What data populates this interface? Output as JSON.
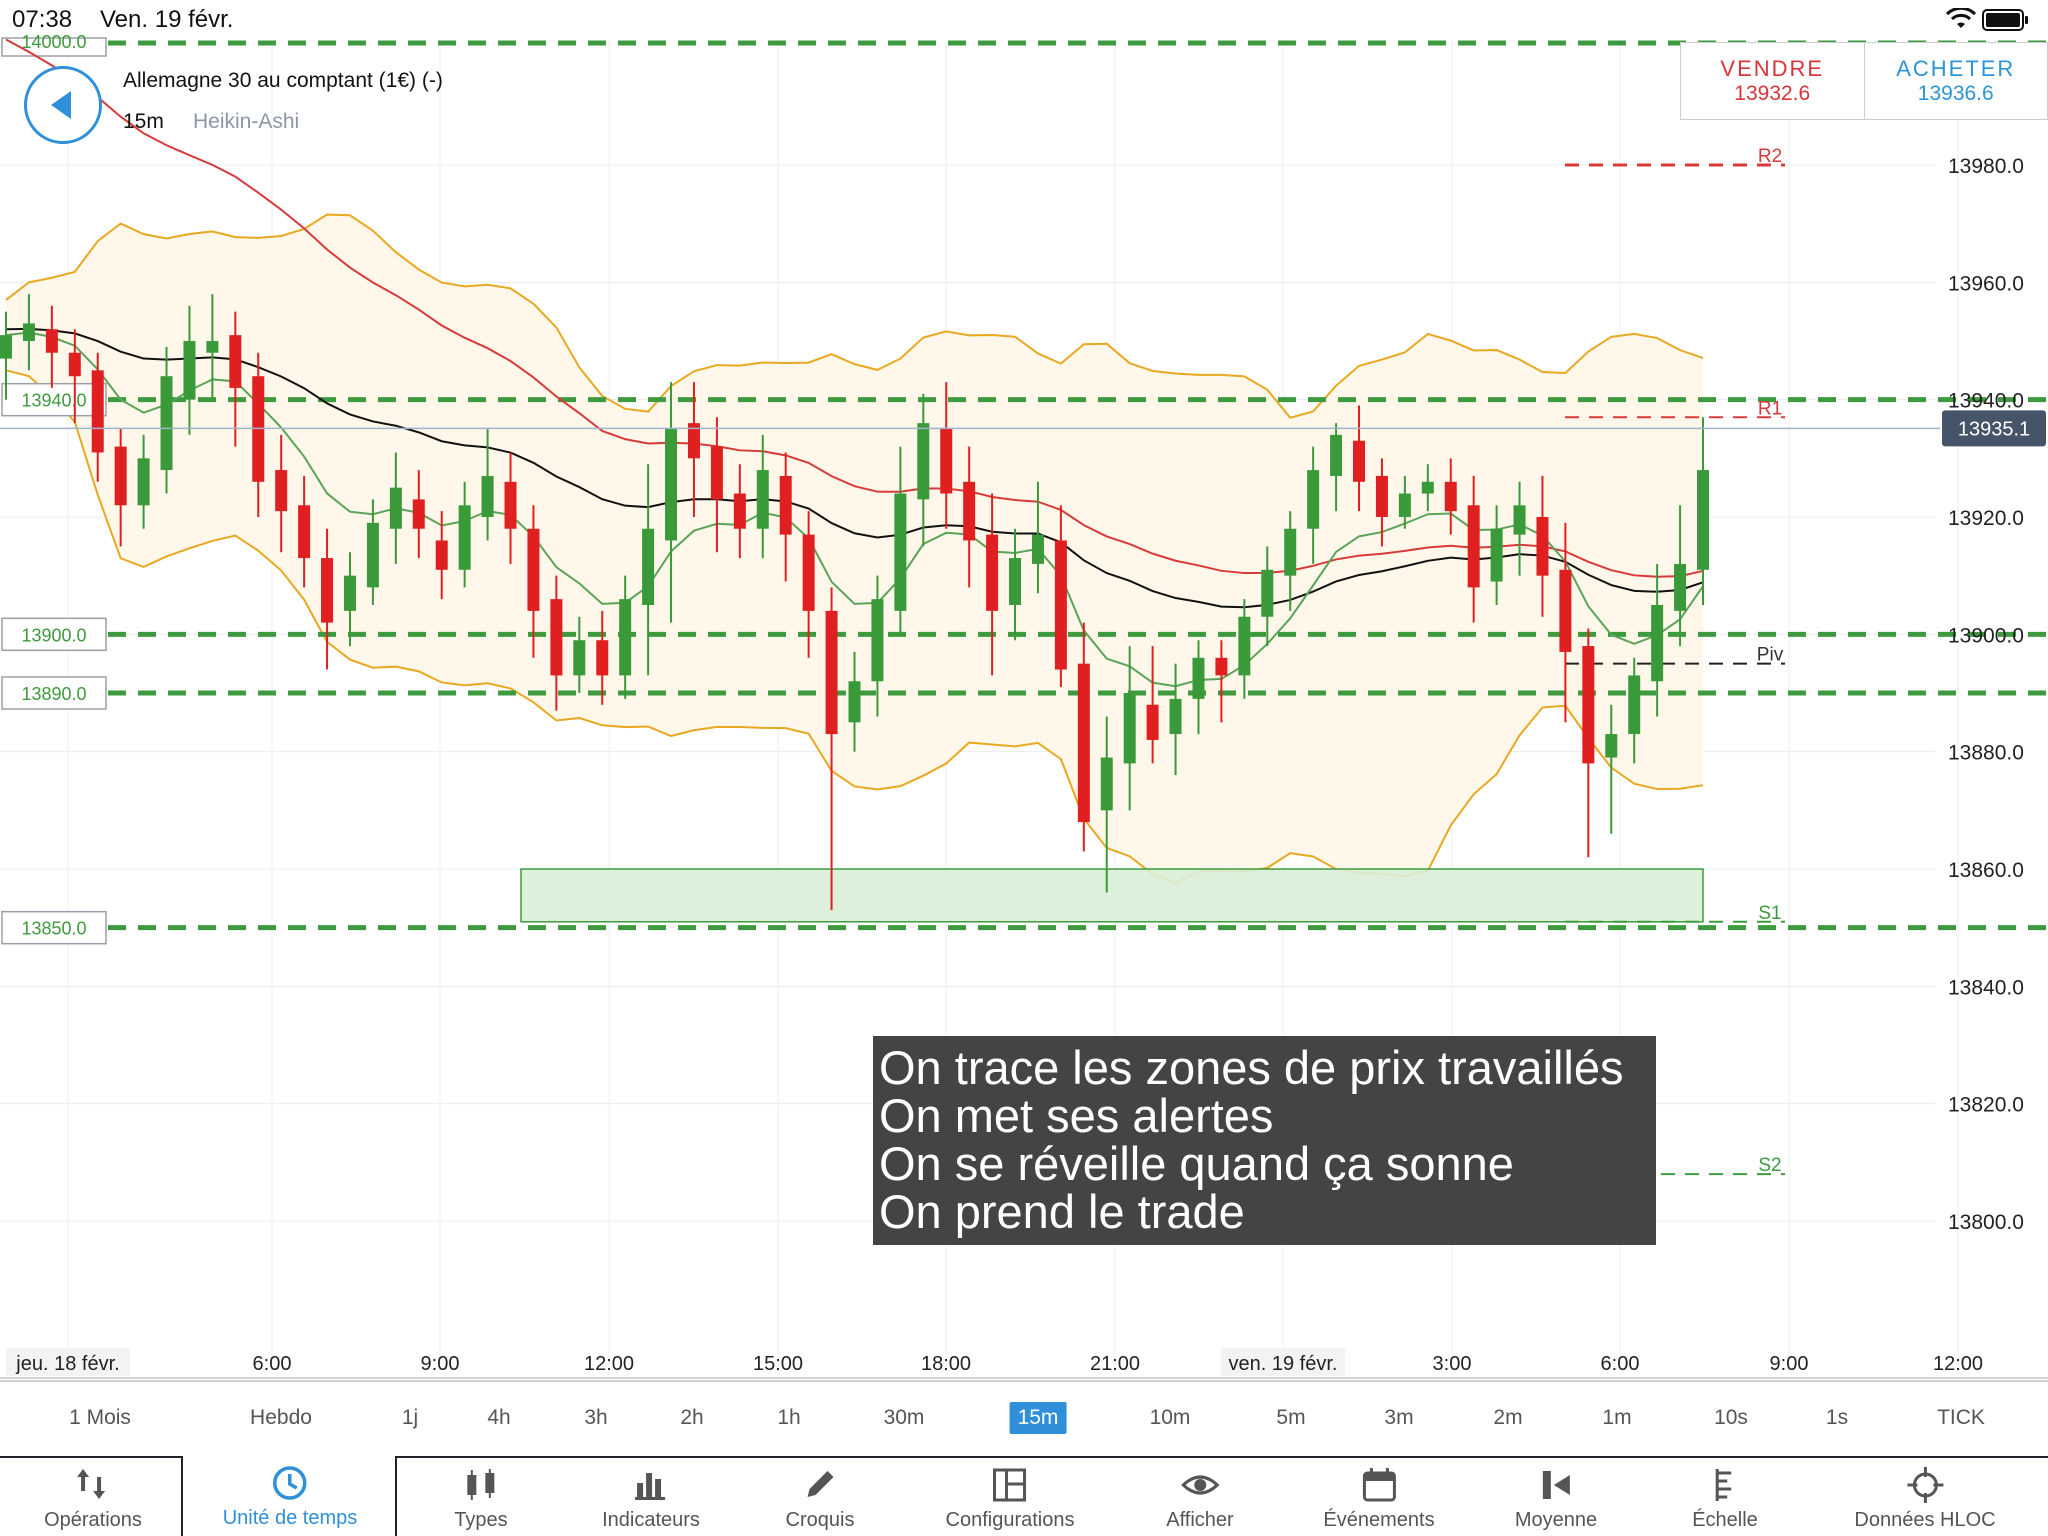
{
  "status_bar": {
    "time": "07:38",
    "date": "Ven. 19 févr."
  },
  "header": {
    "instrument": "Allemagne 30 au comptant (1€) (-)",
    "timeframe": "15m",
    "chart_type": "Heikin-Ashi"
  },
  "trade": {
    "sell_label": "VENDRE",
    "sell_price": "13932.6",
    "buy_label": "ACHETER",
    "buy_price": "13936.6"
  },
  "colors": {
    "bull": "#3a9a3a",
    "bear": "#e02020",
    "bollinger": "#e8a820",
    "ma_red": "#d83a3a",
    "ma_black": "#111111",
    "ma_green": "#5aa45a",
    "level_green": "#3e9a3e",
    "pivot_red": "#d83a3a",
    "zone": "#d8eed8"
  },
  "annotation": [
    "On trace les zones de prix travaillés",
    "On met ses alertes",
    "On se réveille quand ça sonne",
    "On prend le trade"
  ],
  "timeframes": [
    "1 Mois",
    "Hebdo",
    "1j",
    "4h",
    "3h",
    "2h",
    "1h",
    "30m",
    "15m",
    "10m",
    "5m",
    "3m",
    "2m",
    "1m",
    "10s",
    "1s",
    "TICK"
  ],
  "active_timeframe": "15m",
  "toolbar": [
    {
      "label": "Opérations",
      "icon": "arrows-icon"
    },
    {
      "label": "Unité de temps",
      "icon": "clock-icon"
    },
    {
      "label": "Types",
      "icon": "candles-icon"
    },
    {
      "label": "Indicateurs",
      "icon": "bars-icon"
    },
    {
      "label": "Croquis",
      "icon": "pencil-icon"
    },
    {
      "label": "Configurations",
      "icon": "layout-icon"
    },
    {
      "label": "Afficher",
      "icon": "eye-icon"
    },
    {
      "label": "Événements",
      "icon": "calendar-icon"
    },
    {
      "label": "Moyenne",
      "icon": "average-icon"
    },
    {
      "label": "Échelle",
      "icon": "scale-icon"
    },
    {
      "label": "Données HLOC",
      "icon": "crosshair-icon"
    }
  ],
  "chart_data": {
    "type": "candlestick",
    "y_axis": {
      "ticks": [
        13980,
        13960,
        13940,
        13920,
        13900,
        13880,
        13860,
        13840,
        13820,
        13800
      ],
      "tick_labels": [
        "13980.0",
        "13960.0",
        "13940.0",
        "13920.0",
        "13900.0",
        "13880.0",
        "13860.0",
        "13840.0",
        "13820.0",
        "13800.0"
      ],
      "current_price": 13935.1,
      "current_price_label": "13935.1"
    },
    "x_axis": {
      "ticks": [
        "jeu. 18 févr.",
        "6:00",
        "9:00",
        "12:00",
        "15:00",
        "18:00",
        "21:00",
        "ven. 19 févr.",
        "3:00",
        "6:00",
        "9:00",
        "12:00"
      ]
    },
    "alert_levels": [
      {
        "value": 14000,
        "label": "14000.0"
      },
      {
        "value": 13940,
        "label": "13940.0"
      },
      {
        "value": 13900,
        "label": "13900.0"
      },
      {
        "value": 13890,
        "label": "13890.0"
      },
      {
        "value": 13850,
        "label": "13850.0"
      }
    ],
    "pivots": [
      {
        "name": "R2",
        "value": 13980
      },
      {
        "name": "R1",
        "value": 13937
      },
      {
        "name": "Piv",
        "value": 13895
      },
      {
        "name": "S1",
        "value": 13851
      },
      {
        "name": "S2",
        "value": 13808
      }
    ],
    "zone": {
      "from": 13851,
      "to": 13860
    },
    "candles": [
      [
        13947,
        13951,
        13955,
        13940
      ],
      [
        13950,
        13953,
        13958,
        13945
      ],
      [
        13952,
        13948,
        13956,
        13942
      ],
      [
        13948,
        13944,
        13952,
        13936
      ],
      [
        13945,
        13931,
        13948,
        13926
      ],
      [
        13932,
        13922,
        13935,
        13915
      ],
      [
        13922,
        13930,
        13934,
        13918
      ],
      [
        13928,
        13944,
        13949,
        13924
      ],
      [
        13940,
        13950,
        13956,
        13934
      ],
      [
        13948,
        13950,
        13958,
        13940
      ],
      [
        13951,
        13942,
        13955,
        13932
      ],
      [
        13944,
        13926,
        13948,
        13920
      ],
      [
        13928,
        13921,
        13934,
        13914
      ],
      [
        13922,
        13913,
        13927,
        13908
      ],
      [
        13913,
        13902,
        13918,
        13894
      ],
      [
        13904,
        13910,
        13914,
        13898
      ],
      [
        13908,
        13919,
        13923,
        13905
      ],
      [
        13918,
        13925,
        13931,
        13912
      ],
      [
        13923,
        13918,
        13928,
        13913
      ],
      [
        13916,
        13911,
        13921,
        13906
      ],
      [
        13911,
        13922,
        13926,
        13908
      ],
      [
        13920,
        13927,
        13935,
        13916
      ],
      [
        13926,
        13918,
        13931,
        13912
      ],
      [
        13918,
        13904,
        13922,
        13896
      ],
      [
        13906,
        13893,
        13910,
        13887
      ],
      [
        13893,
        13899,
        13903,
        13890
      ],
      [
        13899,
        13893,
        13904,
        13888
      ],
      [
        13893,
        13906,
        13910,
        13889
      ],
      [
        13905,
        13918,
        13929,
        13893
      ],
      [
        13916,
        13935,
        13943,
        13902
      ],
      [
        13936,
        13930,
        13943,
        13920
      ],
      [
        13932,
        13923,
        13937,
        13914
      ],
      [
        13924,
        13918,
        13929,
        13913
      ],
      [
        13918,
        13928,
        13934,
        13913
      ],
      [
        13927,
        13917,
        13931,
        13909
      ],
      [
        13917,
        13904,
        13921,
        13896
      ],
      [
        13904,
        13883,
        13908,
        13853
      ],
      [
        13885,
        13892,
        13897,
        13880
      ],
      [
        13892,
        13906,
        13910,
        13886
      ],
      [
        13904,
        13924,
        13932,
        13900
      ],
      [
        13923,
        13936,
        13941,
        13915
      ],
      [
        13935,
        13924,
        13943,
        13918
      ],
      [
        13926,
        13916,
        13932,
        13908
      ],
      [
        13917,
        13904,
        13924,
        13893
      ],
      [
        13905,
        13913,
        13918,
        13899
      ],
      [
        13912,
        13917,
        13926,
        13907
      ],
      [
        13916,
        13894,
        13922,
        13891
      ],
      [
        13895,
        13868,
        13902,
        13863
      ],
      [
        13870,
        13879,
        13886,
        13856
      ],
      [
        13878,
        13890,
        13898,
        13870
      ],
      [
        13888,
        13882,
        13898,
        13878
      ],
      [
        13883,
        13889,
        13895,
        13876
      ],
      [
        13889,
        13896,
        13899,
        13883
      ],
      [
        13896,
        13893,
        13899,
        13885
      ],
      [
        13893,
        13903,
        13906,
        13889
      ],
      [
        13903,
        13911,
        13915,
        13898
      ],
      [
        13910,
        13918,
        13921,
        13904
      ],
      [
        13918,
        13928,
        13932,
        13912
      ],
      [
        13927,
        13934,
        13936,
        13921
      ],
      [
        13933,
        13926,
        13939,
        13921
      ],
      [
        13927,
        13920,
        13930,
        13915
      ],
      [
        13920,
        13924,
        13927,
        13918
      ],
      [
        13924,
        13926,
        13929,
        13921
      ],
      [
        13926,
        13921,
        13930,
        13917
      ],
      [
        13922,
        13908,
        13927,
        13902
      ],
      [
        13909,
        13918,
        13922,
        13905
      ],
      [
        13917,
        13922,
        13926,
        13910
      ],
      [
        13920,
        13910,
        13927,
        13903
      ],
      [
        13911,
        13897,
        13919,
        13885
      ],
      [
        13898,
        13878,
        13901,
        13862
      ],
      [
        13879,
        13883,
        13888,
        13866
      ],
      [
        13883,
        13893,
        13896,
        13878
      ],
      [
        13892,
        13905,
        13912,
        13886
      ],
      [
        13904,
        13912,
        13922,
        13898
      ],
      [
        13911,
        13928,
        13937,
        13905
      ]
    ]
  }
}
